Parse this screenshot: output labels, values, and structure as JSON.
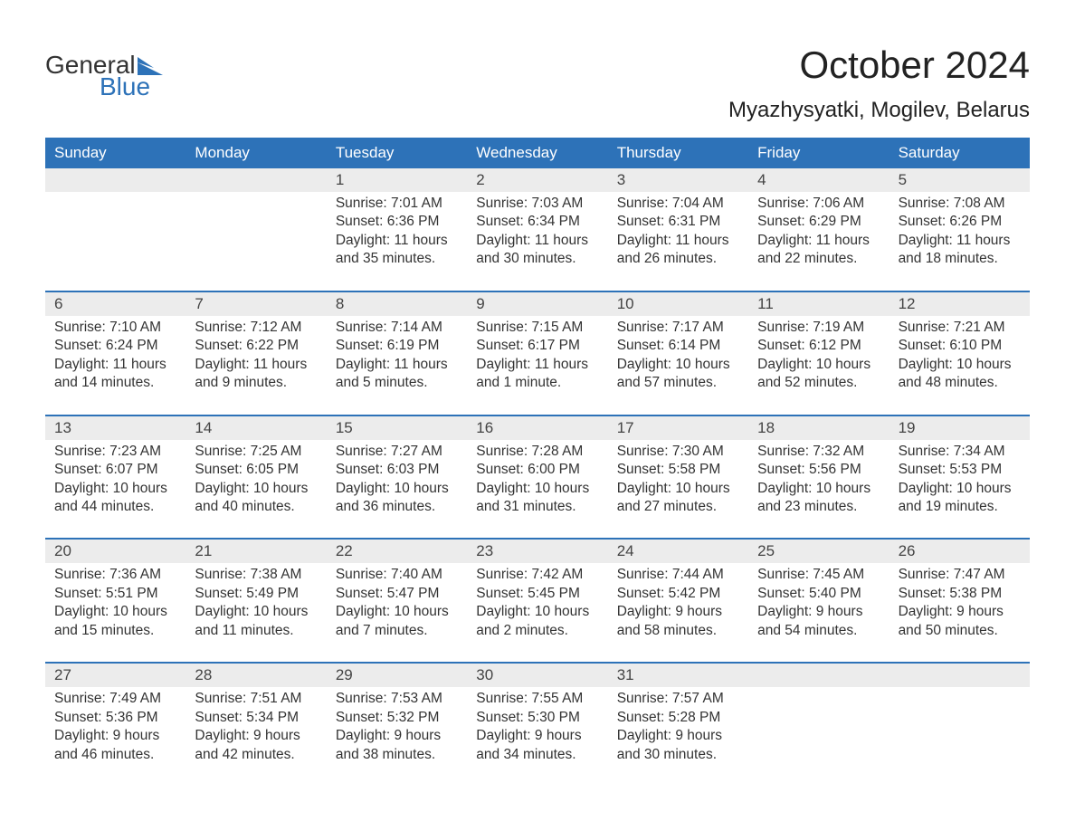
{
  "logo": {
    "word1": "General",
    "word2": "Blue",
    "flag_color": "#2d72b8"
  },
  "title": "October 2024",
  "location": "Myazhysyatki, Mogilev, Belarus",
  "header_bg": "#2d72b8",
  "header_fg": "#ffffff",
  "daynum_bg": "#ececec",
  "week_rule_color": "#2d72b8",
  "text_color": "#333333",
  "font_family": "Arial, Helvetica, sans-serif",
  "title_fontsize": 42,
  "location_fontsize": 24,
  "dow_fontsize": 17,
  "daynum_fontsize": 17,
  "body_fontsize": 15.5,
  "days_of_week": [
    "Sunday",
    "Monday",
    "Tuesday",
    "Wednesday",
    "Thursday",
    "Friday",
    "Saturday"
  ],
  "weeks": [
    [
      {
        "n": "",
        "sunrise": "",
        "sunset": "",
        "daylight": ""
      },
      {
        "n": "",
        "sunrise": "",
        "sunset": "",
        "daylight": ""
      },
      {
        "n": "1",
        "sunrise": "Sunrise: 7:01 AM",
        "sunset": "Sunset: 6:36 PM",
        "daylight": "Daylight: 11 hours and 35 minutes."
      },
      {
        "n": "2",
        "sunrise": "Sunrise: 7:03 AM",
        "sunset": "Sunset: 6:34 PM",
        "daylight": "Daylight: 11 hours and 30 minutes."
      },
      {
        "n": "3",
        "sunrise": "Sunrise: 7:04 AM",
        "sunset": "Sunset: 6:31 PM",
        "daylight": "Daylight: 11 hours and 26 minutes."
      },
      {
        "n": "4",
        "sunrise": "Sunrise: 7:06 AM",
        "sunset": "Sunset: 6:29 PM",
        "daylight": "Daylight: 11 hours and 22 minutes."
      },
      {
        "n": "5",
        "sunrise": "Sunrise: 7:08 AM",
        "sunset": "Sunset: 6:26 PM",
        "daylight": "Daylight: 11 hours and 18 minutes."
      }
    ],
    [
      {
        "n": "6",
        "sunrise": "Sunrise: 7:10 AM",
        "sunset": "Sunset: 6:24 PM",
        "daylight": "Daylight: 11 hours and 14 minutes."
      },
      {
        "n": "7",
        "sunrise": "Sunrise: 7:12 AM",
        "sunset": "Sunset: 6:22 PM",
        "daylight": "Daylight: 11 hours and 9 minutes."
      },
      {
        "n": "8",
        "sunrise": "Sunrise: 7:14 AM",
        "sunset": "Sunset: 6:19 PM",
        "daylight": "Daylight: 11 hours and 5 minutes."
      },
      {
        "n": "9",
        "sunrise": "Sunrise: 7:15 AM",
        "sunset": "Sunset: 6:17 PM",
        "daylight": "Daylight: 11 hours and 1 minute."
      },
      {
        "n": "10",
        "sunrise": "Sunrise: 7:17 AM",
        "sunset": "Sunset: 6:14 PM",
        "daylight": "Daylight: 10 hours and 57 minutes."
      },
      {
        "n": "11",
        "sunrise": "Sunrise: 7:19 AM",
        "sunset": "Sunset: 6:12 PM",
        "daylight": "Daylight: 10 hours and 52 minutes."
      },
      {
        "n": "12",
        "sunrise": "Sunrise: 7:21 AM",
        "sunset": "Sunset: 6:10 PM",
        "daylight": "Daylight: 10 hours and 48 minutes."
      }
    ],
    [
      {
        "n": "13",
        "sunrise": "Sunrise: 7:23 AM",
        "sunset": "Sunset: 6:07 PM",
        "daylight": "Daylight: 10 hours and 44 minutes."
      },
      {
        "n": "14",
        "sunrise": "Sunrise: 7:25 AM",
        "sunset": "Sunset: 6:05 PM",
        "daylight": "Daylight: 10 hours and 40 minutes."
      },
      {
        "n": "15",
        "sunrise": "Sunrise: 7:27 AM",
        "sunset": "Sunset: 6:03 PM",
        "daylight": "Daylight: 10 hours and 36 minutes."
      },
      {
        "n": "16",
        "sunrise": "Sunrise: 7:28 AM",
        "sunset": "Sunset: 6:00 PM",
        "daylight": "Daylight: 10 hours and 31 minutes."
      },
      {
        "n": "17",
        "sunrise": "Sunrise: 7:30 AM",
        "sunset": "Sunset: 5:58 PM",
        "daylight": "Daylight: 10 hours and 27 minutes."
      },
      {
        "n": "18",
        "sunrise": "Sunrise: 7:32 AM",
        "sunset": "Sunset: 5:56 PM",
        "daylight": "Daylight: 10 hours and 23 minutes."
      },
      {
        "n": "19",
        "sunrise": "Sunrise: 7:34 AM",
        "sunset": "Sunset: 5:53 PM",
        "daylight": "Daylight: 10 hours and 19 minutes."
      }
    ],
    [
      {
        "n": "20",
        "sunrise": "Sunrise: 7:36 AM",
        "sunset": "Sunset: 5:51 PM",
        "daylight": "Daylight: 10 hours and 15 minutes."
      },
      {
        "n": "21",
        "sunrise": "Sunrise: 7:38 AM",
        "sunset": "Sunset: 5:49 PM",
        "daylight": "Daylight: 10 hours and 11 minutes."
      },
      {
        "n": "22",
        "sunrise": "Sunrise: 7:40 AM",
        "sunset": "Sunset: 5:47 PM",
        "daylight": "Daylight: 10 hours and 7 minutes."
      },
      {
        "n": "23",
        "sunrise": "Sunrise: 7:42 AM",
        "sunset": "Sunset: 5:45 PM",
        "daylight": "Daylight: 10 hours and 2 minutes."
      },
      {
        "n": "24",
        "sunrise": "Sunrise: 7:44 AM",
        "sunset": "Sunset: 5:42 PM",
        "daylight": "Daylight: 9 hours and 58 minutes."
      },
      {
        "n": "25",
        "sunrise": "Sunrise: 7:45 AM",
        "sunset": "Sunset: 5:40 PM",
        "daylight": "Daylight: 9 hours and 54 minutes."
      },
      {
        "n": "26",
        "sunrise": "Sunrise: 7:47 AM",
        "sunset": "Sunset: 5:38 PM",
        "daylight": "Daylight: 9 hours and 50 minutes."
      }
    ],
    [
      {
        "n": "27",
        "sunrise": "Sunrise: 7:49 AM",
        "sunset": "Sunset: 5:36 PM",
        "daylight": "Daylight: 9 hours and 46 minutes."
      },
      {
        "n": "28",
        "sunrise": "Sunrise: 7:51 AM",
        "sunset": "Sunset: 5:34 PM",
        "daylight": "Daylight: 9 hours and 42 minutes."
      },
      {
        "n": "29",
        "sunrise": "Sunrise: 7:53 AM",
        "sunset": "Sunset: 5:32 PM",
        "daylight": "Daylight: 9 hours and 38 minutes."
      },
      {
        "n": "30",
        "sunrise": "Sunrise: 7:55 AM",
        "sunset": "Sunset: 5:30 PM",
        "daylight": "Daylight: 9 hours and 34 minutes."
      },
      {
        "n": "31",
        "sunrise": "Sunrise: 7:57 AM",
        "sunset": "Sunset: 5:28 PM",
        "daylight": "Daylight: 9 hours and 30 minutes."
      },
      {
        "n": "",
        "sunrise": "",
        "sunset": "",
        "daylight": ""
      },
      {
        "n": "",
        "sunrise": "",
        "sunset": "",
        "daylight": ""
      }
    ]
  ]
}
